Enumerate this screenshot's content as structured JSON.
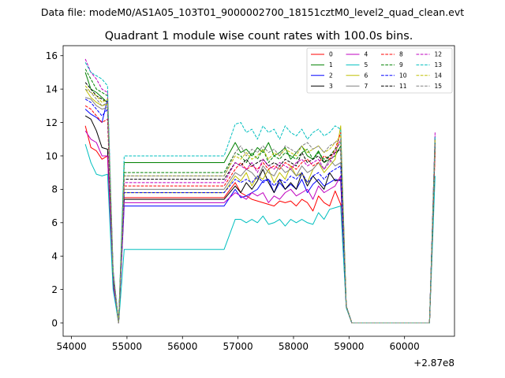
{
  "chart_data": {
    "type": "line",
    "suptitle": "Data file: modeM0/AS1A05_103T01_9000002700_18151cztM0_level2_quad_clean.evt",
    "title": "Quadrant 1 module wise count rates with 100.0s bins.",
    "xlabel": "",
    "ylabel": "",
    "x_offset_label": "+2.87e8",
    "xlim": [
      53850,
      60900
    ],
    "ylim": [
      -0.8,
      16.6
    ],
    "x_ticks": [
      54000,
      55000,
      56000,
      57000,
      58000,
      59000,
      60000
    ],
    "x_tick_labels": [
      "54000",
      "55000",
      "56000",
      "57000",
      "58000",
      "59000",
      "60000"
    ],
    "y_ticks": [
      0,
      2,
      4,
      6,
      8,
      10,
      12,
      14,
      16
    ],
    "y_tick_labels": [
      "0",
      "2",
      "4",
      "6",
      "8",
      "10",
      "12",
      "14",
      "16"
    ],
    "grid": false,
    "legend_position": "top-right",
    "legend_columns": 4,
    "segments": [
      {
        "x_start": 54250,
        "count": 7
      },
      {
        "x_start": 54950,
        "count": 19,
        "gap": true
      },
      {
        "x_start": 56950,
        "count": 21
      },
      {
        "x_start": 59050,
        "count": 14,
        "gap": true
      },
      {
        "x_start": 60450,
        "count": 2
      }
    ],
    "series": [
      {
        "name": "0",
        "color": "#ff0000",
        "dash": "solid",
        "values": [
          11.8,
          10.5,
          10.3,
          9.8,
          10.0,
          2.3,
          0,
          7.5,
          8.4,
          7.8,
          7.6,
          7.4,
          7.3,
          7.2,
          7.1,
          7.0,
          7.3,
          7.2,
          7.3,
          7.0,
          7.4,
          7.2,
          6.7,
          7.6,
          7.2,
          7.0,
          7.9,
          7.1,
          1.0,
          0,
          0,
          10.3,
          7.1
        ]
      },
      {
        "name": "1",
        "color": "#008000",
        "dash": "solid",
        "values": [
          15.0,
          14.0,
          13.8,
          13.5,
          13.2,
          3.0,
          0,
          9.6,
          10.8,
          10.2,
          10.4,
          10.0,
          10.5,
          10.2,
          10.8,
          10.0,
          10.2,
          10.5,
          9.8,
          10.2,
          10.6,
          10.0,
          9.8,
          10.3,
          9.6,
          9.8,
          10.0,
          10.6,
          1.0,
          0,
          0,
          10.6,
          10.2
        ]
      },
      {
        "name": "2",
        "color": "#0000ff",
        "dash": "solid",
        "values": [
          12.8,
          12.5,
          12.3,
          12.0,
          13.4,
          2.8,
          0,
          7.0,
          8.0,
          7.5,
          7.6,
          7.8,
          8.0,
          8.5,
          8.6,
          7.8,
          8.4,
          8.0,
          8.3,
          8.0,
          8.6,
          7.8,
          8.3,
          8.6,
          8.2,
          8.4,
          8.6,
          8.5,
          1.0,
          0,
          0,
          11.0,
          8.0
        ]
      },
      {
        "name": "3",
        "color": "#000000",
        "dash": "solid",
        "values": [
          12.4,
          12.2,
          11.5,
          10.5,
          10.4,
          2.5,
          0,
          7.4,
          8.2,
          7.8,
          8.4,
          8.0,
          8.5,
          9.2,
          8.4,
          7.8,
          8.6,
          8.0,
          8.4,
          8.0,
          9.0,
          8.2,
          8.8,
          8.4,
          8.0,
          9.0,
          8.5,
          8.6,
          1.0,
          0,
          0,
          10.8,
          8.6
        ]
      },
      {
        "name": "4",
        "color": "#bf00bf",
        "dash": "solid",
        "values": [
          11.5,
          11.0,
          10.8,
          10.0,
          10.0,
          2.3,
          0,
          7.2,
          7.8,
          7.6,
          7.4,
          7.8,
          7.6,
          7.8,
          7.2,
          7.6,
          7.4,
          7.8,
          8.0,
          7.6,
          7.8,
          8.0,
          7.4,
          8.2,
          7.8,
          8.0,
          8.2,
          8.8,
          1.0,
          0,
          0,
          11.2,
          9.0
        ]
      },
      {
        "name": "5",
        "color": "#00bfbf",
        "dash": "solid",
        "values": [
          10.7,
          9.6,
          8.9,
          8.8,
          8.9,
          2.0,
          0,
          4.4,
          6.2,
          6.2,
          6.0,
          6.2,
          6.0,
          6.4,
          5.9,
          6.0,
          6.2,
          5.8,
          6.2,
          6.0,
          6.2,
          6.0,
          5.9,
          6.6,
          6.2,
          6.8,
          6.9,
          7.0,
          0.9,
          0,
          0,
          8.8,
          6.2
        ]
      },
      {
        "name": "6",
        "color": "#bfbf00",
        "dash": "solid",
        "values": [
          14.0,
          13.5,
          13.2,
          13.0,
          13.1,
          3.0,
          0,
          7.8,
          8.8,
          8.5,
          9.0,
          8.2,
          8.8,
          8.6,
          9.2,
          8.4,
          9.0,
          8.6,
          9.4,
          8.8,
          9.0,
          8.4,
          9.2,
          9.6,
          9.0,
          9.4,
          9.8,
          11.8,
          1.0,
          0,
          0,
          10.5,
          9.2
        ]
      },
      {
        "name": "7",
        "color": "#808080",
        "dash": "solid",
        "values": [
          13.5,
          13.4,
          13.0,
          12.8,
          12.9,
          3.0,
          0,
          8.0,
          9.0,
          8.8,
          9.2,
          9.0,
          8.6,
          9.4,
          9.0,
          8.8,
          9.4,
          9.0,
          9.2,
          8.8,
          9.4,
          9.0,
          9.2,
          9.6,
          9.2,
          9.8,
          9.4,
          9.6,
          1.0,
          0,
          0,
          10.6,
          9.6
        ]
      },
      {
        "name": "8",
        "color": "#ff0000",
        "dash": "dashed",
        "values": [
          13.0,
          12.8,
          12.4,
          12.0,
          12.2,
          2.9,
          0,
          8.2,
          9.2,
          9.6,
          9.2,
          9.4,
          9.2,
          9.6,
          9.2,
          9.4,
          9.2,
          9.6,
          9.4,
          9.2,
          9.6,
          9.8,
          9.4,
          9.6,
          10.0,
          9.8,
          10.4,
          11.4,
          1.0,
          0,
          0,
          10.2,
          9.6
        ]
      },
      {
        "name": "9",
        "color": "#008000",
        "dash": "dashed",
        "values": [
          15.2,
          14.6,
          14.0,
          13.8,
          13.6,
          3.1,
          0,
          9.0,
          10.2,
          10.0,
          9.6,
          10.2,
          9.8,
          10.4,
          9.6,
          10.0,
          9.8,
          10.2,
          10.0,
          9.8,
          10.2,
          10.4,
          9.8,
          10.2,
          9.8,
          10.0,
          10.4,
          10.8,
          1.0,
          0,
          0,
          11.0,
          10.0
        ]
      },
      {
        "name": "10",
        "color": "#0000ff",
        "dash": "dashed",
        "values": [
          13.4,
          13.2,
          12.8,
          12.4,
          12.8,
          2.9,
          0,
          7.8,
          8.6,
          8.4,
          8.6,
          8.4,
          8.8,
          8.4,
          8.6,
          8.2,
          8.6,
          8.4,
          8.8,
          8.6,
          9.0,
          8.4,
          8.8,
          9.0,
          8.6,
          9.0,
          9.2,
          9.4,
          1.0,
          0,
          0,
          10.8,
          8.8
        ]
      },
      {
        "name": "11",
        "color": "#000000",
        "dash": "dashed",
        "values": [
          14.4,
          14.0,
          13.6,
          13.4,
          13.2,
          3.0,
          0,
          8.6,
          9.6,
          9.4,
          9.8,
          9.4,
          9.6,
          9.8,
          9.4,
          9.6,
          9.4,
          9.8,
          9.6,
          9.4,
          10.2,
          9.6,
          9.8,
          10.0,
          9.6,
          10.0,
          10.2,
          10.4,
          1.0,
          0,
          0,
          10.8,
          10.0
        ]
      },
      {
        "name": "12",
        "color": "#bf00bf",
        "dash": "dashed",
        "values": [
          15.8,
          15.0,
          14.6,
          14.0,
          13.8,
          3.2,
          0,
          8.4,
          9.6,
          9.4,
          9.2,
          9.6,
          9.0,
          9.8,
          9.4,
          9.2,
          9.6,
          9.4,
          9.2,
          9.6,
          9.8,
          9.4,
          9.6,
          9.8,
          9.2,
          9.6,
          10.2,
          11.0,
          1.0,
          0,
          0,
          11.4,
          9.6
        ]
      },
      {
        "name": "13",
        "color": "#00bfbf",
        "dash": "dashed",
        "values": [
          15.6,
          15.0,
          14.8,
          14.6,
          14.2,
          3.2,
          0,
          10.0,
          11.9,
          12.0,
          11.4,
          11.6,
          11.0,
          11.8,
          11.4,
          11.6,
          11.0,
          11.8,
          11.4,
          11.2,
          11.6,
          11.0,
          11.4,
          11.6,
          11.2,
          11.4,
          11.8,
          11.6,
          1.0,
          0,
          0,
          11.2,
          10.4
        ]
      },
      {
        "name": "14",
        "color": "#bfbf00",
        "dash": "dashed",
        "values": [
          14.2,
          13.8,
          13.6,
          13.2,
          13.4,
          3.0,
          0,
          8.8,
          10.0,
          9.8,
          10.2,
          9.8,
          10.0,
          10.4,
          9.8,
          10.2,
          10.0,
          10.4,
          10.2,
          10.0,
          10.6,
          10.2,
          10.4,
          10.6,
          10.2,
          10.4,
          10.8,
          11.2,
          1.0,
          0,
          0,
          11.0,
          10.0
        ]
      },
      {
        "name": "15",
        "color": "#808080",
        "dash": "dashed",
        "values": [
          14.0,
          13.8,
          13.4,
          13.0,
          13.2,
          3.0,
          0,
          8.8,
          10.2,
          10.6,
          10.0,
          10.4,
          10.2,
          10.6,
          10.2,
          10.4,
          10.0,
          10.6,
          10.4,
          10.2,
          10.6,
          10.8,
          10.4,
          10.6,
          10.2,
          10.6,
          10.8,
          11.0,
          1.0,
          0,
          0,
          10.8,
          10.2
        ]
      }
    ]
  }
}
